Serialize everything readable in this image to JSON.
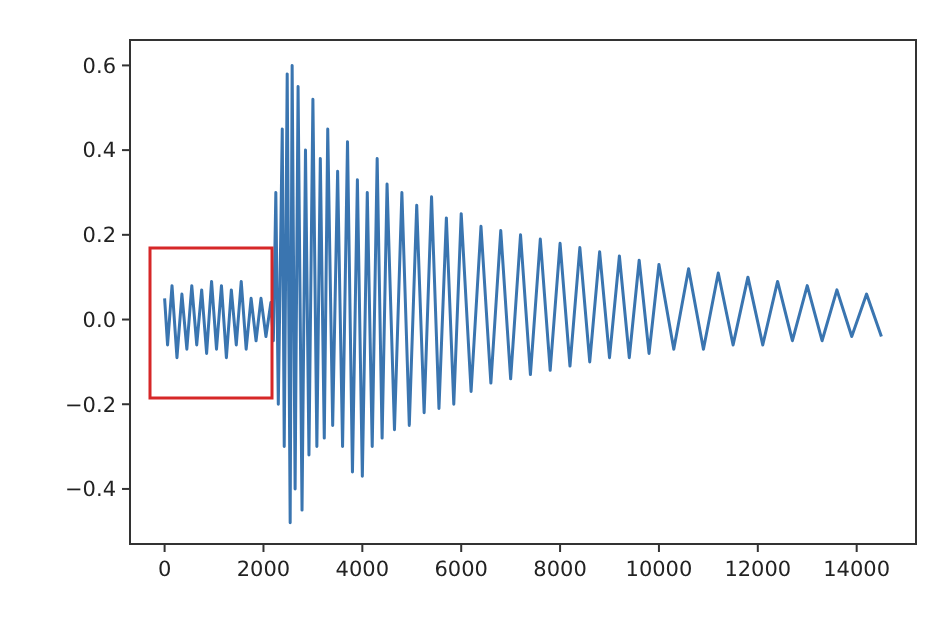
{
  "chart_data": {
    "type": "line",
    "x": [
      0,
      60,
      150,
      250,
      350,
      450,
      550,
      650,
      750,
      850,
      950,
      1050,
      1150,
      1250,
      1350,
      1450,
      1550,
      1650,
      1750,
      1850,
      1950,
      2050,
      2150,
      2200,
      2250,
      2300,
      2380,
      2420,
      2480,
      2540,
      2580,
      2640,
      2700,
      2780,
      2850,
      2920,
      3000,
      3080,
      3150,
      3230,
      3300,
      3400,
      3500,
      3600,
      3700,
      3800,
      3900,
      4000,
      4100,
      4200,
      4300,
      4400,
      4500,
      4650,
      4800,
      4950,
      5100,
      5250,
      5400,
      5550,
      5700,
      5850,
      6000,
      6200,
      6400,
      6600,
      6800,
      7000,
      7200,
      7400,
      7600,
      7800,
      8000,
      8200,
      8400,
      8600,
      8800,
      9000,
      9200,
      9400,
      9600,
      9800,
      10000,
      10300,
      10600,
      10900,
      11200,
      11500,
      11800,
      12100,
      12400,
      12700,
      13000,
      13300,
      13600,
      13900,
      14200,
      14500
    ],
    "series": [
      {
        "color": "#3a75b0",
        "values": [
          0.05,
          -0.06,
          0.08,
          -0.09,
          0.06,
          -0.07,
          0.08,
          -0.06,
          0.07,
          -0.08,
          0.09,
          -0.07,
          0.08,
          -0.09,
          0.07,
          -0.06,
          0.09,
          -0.07,
          0.05,
          -0.05,
          0.05,
          -0.04,
          0.04,
          -0.05,
          0.3,
          -0.2,
          0.45,
          -0.3,
          0.58,
          -0.48,
          0.6,
          -0.4,
          0.55,
          -0.45,
          0.4,
          -0.32,
          0.52,
          -0.3,
          0.38,
          -0.28,
          0.45,
          -0.25,
          0.35,
          -0.3,
          0.42,
          -0.36,
          0.33,
          -0.37,
          0.3,
          -0.3,
          0.38,
          -0.28,
          0.32,
          -0.26,
          0.3,
          -0.25,
          0.27,
          -0.22,
          0.29,
          -0.21,
          0.24,
          -0.2,
          0.25,
          -0.17,
          0.22,
          -0.15,
          0.21,
          -0.14,
          0.2,
          -0.13,
          0.19,
          -0.12,
          0.18,
          -0.11,
          0.17,
          -0.1,
          0.16,
          -0.09,
          0.15,
          -0.09,
          0.14,
          -0.08,
          0.13,
          -0.07,
          0.12,
          -0.07,
          0.11,
          -0.06,
          0.1,
          -0.06,
          0.09,
          -0.05,
          0.08,
          -0.05,
          0.07,
          -0.04,
          0.06,
          -0.04
        ]
      }
    ],
    "xlim": [
      -700,
      15200
    ],
    "ylim": [
      -0.53,
      0.66
    ],
    "xticks": [
      0,
      2000,
      4000,
      6000,
      8000,
      10000,
      12000,
      14000
    ],
    "yticks": [
      {
        "value": -0.4,
        "label": "−0.4"
      },
      {
        "value": -0.2,
        "label": "−0.2"
      },
      {
        "value": 0,
        "label": "0.0"
      },
      {
        "value": 0.2,
        "label": "0.2"
      },
      {
        "value": 0.4,
        "label": "0.4"
      },
      {
        "value": 0.6,
        "label": "0.6"
      }
    ],
    "grid": false
  }
}
